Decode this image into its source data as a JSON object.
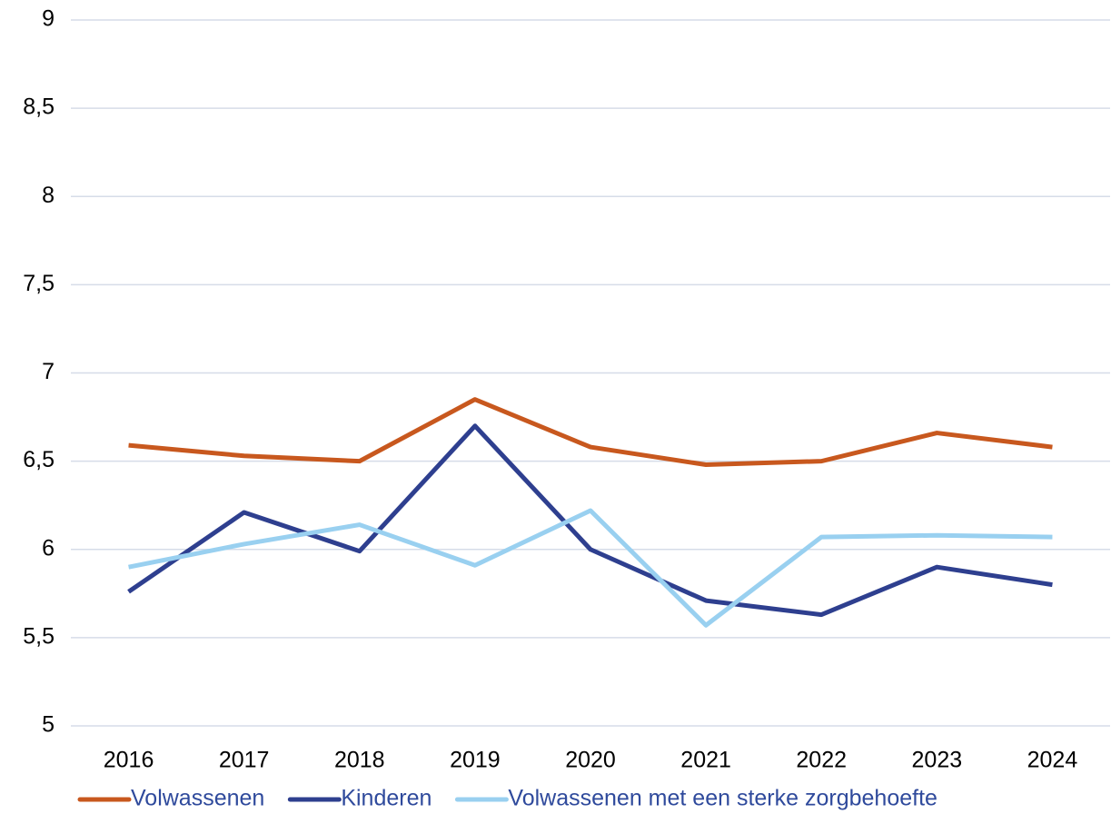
{
  "chart_data": {
    "type": "line",
    "categories": [
      "2016",
      "2017",
      "2018",
      "2019",
      "2020",
      "2021",
      "2022",
      "2023",
      "2024"
    ],
    "series": [
      {
        "name": "Volwassenen",
        "color": "#c8581e",
        "values": [
          6.59,
          6.53,
          6.5,
          6.85,
          6.58,
          6.48,
          6.5,
          6.66,
          6.58
        ]
      },
      {
        "name": "Kinderen",
        "color": "#2e3f8f",
        "values": [
          5.76,
          6.21,
          5.99,
          6.7,
          6.0,
          5.71,
          5.63,
          5.9,
          5.8
        ]
      },
      {
        "name": "Volwassenen met een sterke zorgbehoefte",
        "color": "#99d0f0",
        "values": [
          5.9,
          6.03,
          6.14,
          5.91,
          6.22,
          5.57,
          6.07,
          6.08,
          6.07
        ]
      }
    ],
    "ylim": [
      5,
      9
    ],
    "yticks": [
      5,
      {
        "value": 5.5,
        "label": "5,5"
      },
      6,
      {
        "value": 6.5,
        "label": "6,5"
      },
      7,
      {
        "value": 7.5,
        "label": "7,5"
      },
      8,
      {
        "value": 8.5,
        "label": "8,5"
      },
      9
    ],
    "grid": true,
    "legend": "bottom"
  }
}
